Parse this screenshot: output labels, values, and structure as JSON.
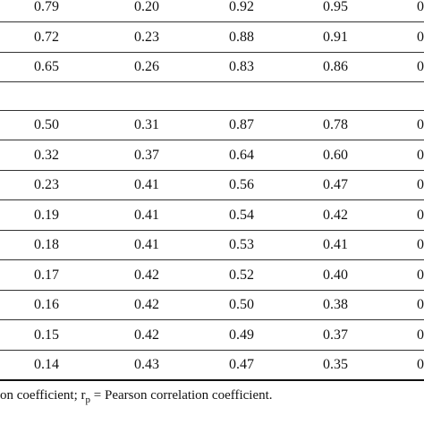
{
  "table": {
    "groups": [
      [
        [
          "0.79",
          "0.20",
          "0.92",
          "0.95",
          "0"
        ],
        [
          "0.72",
          "0.23",
          "0.88",
          "0.91",
          "0"
        ],
        [
          "0.65",
          "0.26",
          "0.83",
          "0.86",
          "0"
        ]
      ],
      [
        [
          "0.50",
          "0.31",
          "0.87",
          "0.78",
          "0"
        ],
        [
          "0.32",
          "0.37",
          "0.64",
          "0.60",
          "0"
        ],
        [
          "0.23",
          "0.41",
          "0.56",
          "0.47",
          "0"
        ],
        [
          "0.19",
          "0.41",
          "0.54",
          "0.42",
          "0"
        ],
        [
          "0.18",
          "0.41",
          "0.53",
          "0.41",
          "0"
        ],
        [
          "0.17",
          "0.42",
          "0.52",
          "0.40",
          "0"
        ],
        [
          "0.16",
          "0.42",
          "0.50",
          "0.38",
          "0"
        ],
        [
          "0.15",
          "0.42",
          "0.49",
          "0.37",
          "0"
        ],
        [
          "0.14",
          "0.43",
          "0.47",
          "0.35",
          "0"
        ]
      ]
    ]
  },
  "footnote": {
    "before": "on coefficient; r",
    "sub": "p",
    "after": " = Pearson correlation coefficient."
  }
}
